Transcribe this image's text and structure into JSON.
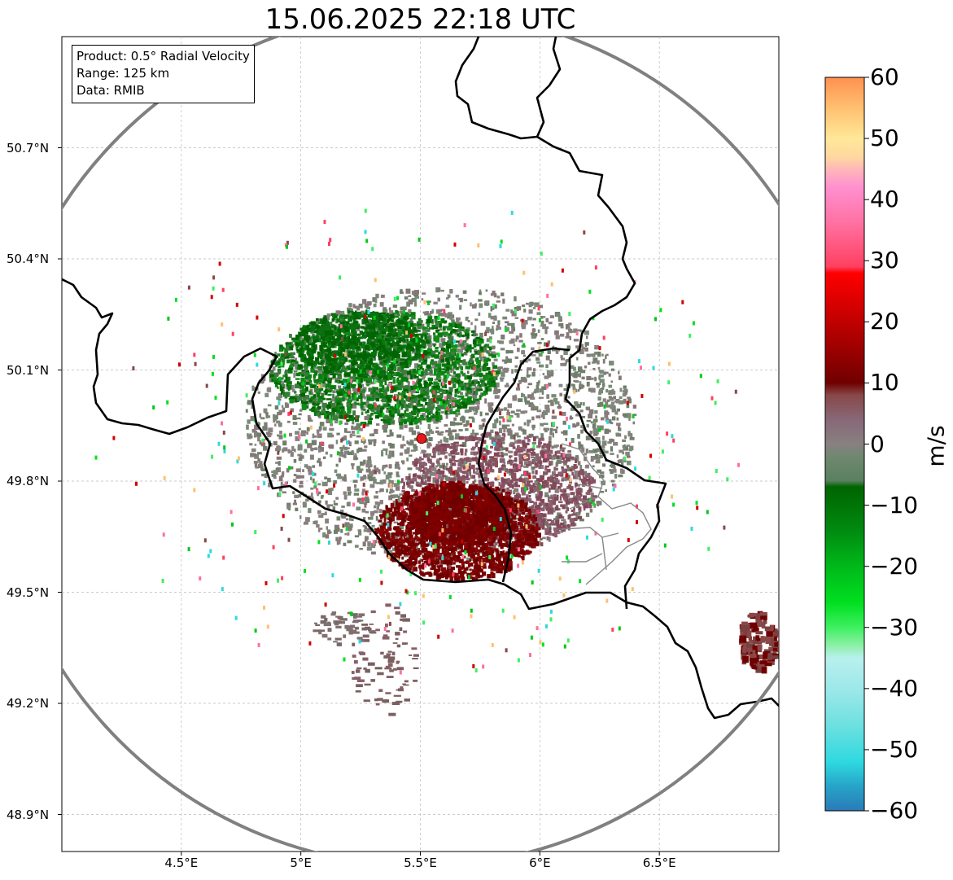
{
  "title": "15.06.2025 22:18 UTC",
  "info": {
    "product": "Product: 0.5° Radial Velocity",
    "range": "Range: 125 km",
    "data": "Data: RMIB"
  },
  "map": {
    "lon_range": [
      4.0,
      7.0
    ],
    "lat_range": [
      48.8,
      51.0
    ],
    "x_ticks": [
      "4.5°E",
      "5°E",
      "5.5°E",
      "6°E",
      "6.5°E"
    ],
    "y_ticks": [
      "50.7°N",
      "50.4°N",
      "50.1°N",
      "49.8°N",
      "49.5°N",
      "49.2°N",
      "48.9°N"
    ],
    "radar_site": {
      "lon": 5.505,
      "lat": 49.915,
      "color": "#e41a1c"
    },
    "range_ring_color": "#808080",
    "border_color": "#000000",
    "admin_border_color": "#888888"
  },
  "colorbar": {
    "label": "m/s",
    "min": -60,
    "max": 60,
    "ticks": [
      "60",
      "50",
      "40",
      "30",
      "20",
      "10",
      "0",
      "−10",
      "−20",
      "−30",
      "−40",
      "−50",
      "−60"
    ],
    "stops": [
      {
        "v": -60,
        "c": "#2a7ab8"
      },
      {
        "v": -56,
        "c": "#26a4c8"
      },
      {
        "v": -52,
        "c": "#2ed9e0"
      },
      {
        "v": -46,
        "c": "#6ee0e0"
      },
      {
        "v": -40,
        "c": "#9ee8ea"
      },
      {
        "v": -35,
        "c": "#b8f0ee"
      },
      {
        "v": -33,
        "c": "#8ef0a8"
      },
      {
        "v": -30,
        "c": "#3ef060"
      },
      {
        "v": -26,
        "c": "#00e020"
      },
      {
        "v": -20,
        "c": "#00b81a"
      },
      {
        "v": -14,
        "c": "#008a10"
      },
      {
        "v": -7,
        "c": "#006400"
      },
      {
        "v": -6,
        "c": "#5a8060"
      },
      {
        "v": -2,
        "c": "#708870"
      },
      {
        "v": 0,
        "c": "#888080"
      },
      {
        "v": 4,
        "c": "#886878"
      },
      {
        "v": 8,
        "c": "#884848"
      },
      {
        "v": 10,
        "c": "#700000"
      },
      {
        "v": 16,
        "c": "#a00000"
      },
      {
        "v": 22,
        "c": "#d00000"
      },
      {
        "v": 28,
        "c": "#ff0000"
      },
      {
        "v": 29,
        "c": "#ff4060"
      },
      {
        "v": 36,
        "c": "#ff70a0"
      },
      {
        "v": 42,
        "c": "#ff90d0"
      },
      {
        "v": 45,
        "c": "#ffb8b8"
      },
      {
        "v": 47,
        "c": "#ffd8a0"
      },
      {
        "v": 50,
        "c": "#ffe898"
      },
      {
        "v": 55,
        "c": "#ffc070"
      },
      {
        "v": 60,
        "c": "#ff9050"
      }
    ]
  }
}
